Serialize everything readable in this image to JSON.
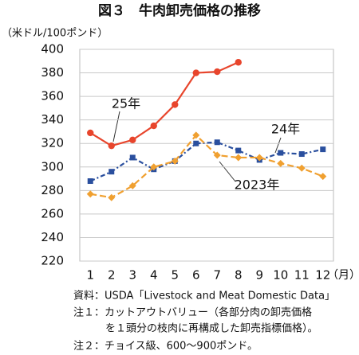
{
  "chart_data": {
    "type": "line",
    "title": "図３　牛肉卸売価格の推移",
    "ylabel": "（米ドル/100ポンド）",
    "xlabel": "（月）",
    "categories": [
      "1",
      "2",
      "3",
      "4",
      "5",
      "6",
      "7",
      "8",
      "9",
      "10",
      "11",
      "12"
    ],
    "series": [
      {
        "name": "25年",
        "color": "#e8452c",
        "values": [
          329,
          318,
          323,
          335,
          353,
          380,
          381,
          389,
          null,
          null,
          null,
          null
        ]
      },
      {
        "name": "24年",
        "color": "#2a4f9e",
        "values": [
          288,
          296,
          308,
          298,
          305,
          320,
          321,
          314,
          306,
          312,
          311,
          315
        ]
      },
      {
        "name": "2023年",
        "color": "#f0a030",
        "values": [
          277,
          274,
          284,
          300,
          305,
          327,
          310,
          308,
          308,
          303,
          299,
          292
        ]
      }
    ],
    "ylim": [
      220,
      400
    ],
    "yticks": [
      220,
      240,
      260,
      280,
      300,
      320,
      340,
      360,
      380,
      400
    ],
    "grid": true,
    "notes": [
      "資料：USDA「Livestock and Meat Domestic Data」",
      "注１：カットアウトバリュー（各部分肉の卸売価格",
      "を１頭分の枝肉に再構成した卸売指標価格）。",
      "注２：チョイス級、600～900ポンド。"
    ]
  }
}
